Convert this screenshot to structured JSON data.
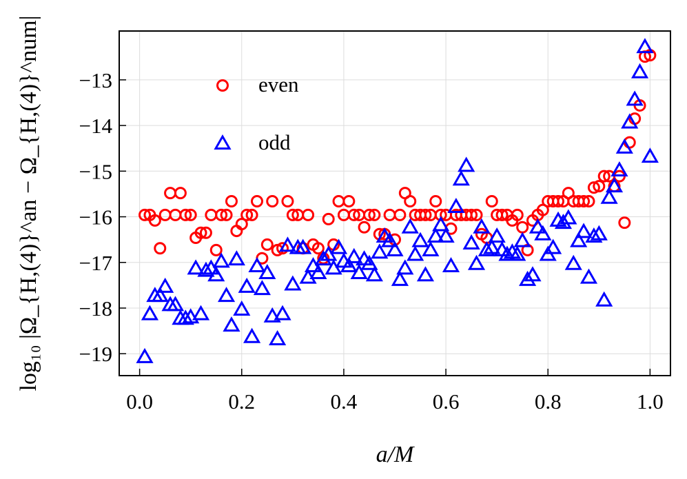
{
  "chart_data": {
    "type": "scatter",
    "xlabel": "a/M",
    "ylabel": "log₁₀ |Ω_{H,(4)}^an − Ω_{H,(4)}^num|",
    "x": [
      0.01,
      0.02,
      0.03,
      0.04,
      0.05,
      0.06,
      0.07,
      0.08,
      0.09,
      0.1,
      0.11,
      0.12,
      0.13,
      0.14,
      0.15,
      0.16,
      0.17,
      0.18,
      0.19,
      0.2,
      0.21,
      0.22,
      0.23,
      0.24,
      0.25,
      0.26,
      0.27,
      0.28,
      0.29,
      0.3,
      0.31,
      0.32,
      0.33,
      0.34,
      0.35,
      0.36,
      0.37,
      0.38,
      0.39,
      0.4,
      0.41,
      0.42,
      0.43,
      0.44,
      0.45,
      0.46,
      0.47,
      0.48,
      0.49,
      0.5,
      0.51,
      0.52,
      0.53,
      0.54,
      0.55,
      0.56,
      0.57,
      0.58,
      0.59,
      0.6,
      0.61,
      0.62,
      0.63,
      0.64,
      0.65,
      0.66,
      0.67,
      0.68,
      0.69,
      0.7,
      0.71,
      0.72,
      0.73,
      0.74,
      0.75,
      0.76,
      0.77,
      0.78,
      0.79,
      0.8,
      0.81,
      0.82,
      0.83,
      0.84,
      0.85,
      0.86,
      0.87,
      0.88,
      0.89,
      0.9,
      0.91,
      0.92,
      0.93,
      0.94,
      0.95,
      0.96,
      0.97,
      0.98,
      0.99,
      1.0
    ],
    "series": [
      {
        "name": "even",
        "color": "#ff0000",
        "marker": "circle",
        "values": [
          -15.96,
          -15.96,
          -16.08,
          -16.69,
          -15.96,
          -15.48,
          -15.96,
          -15.48,
          -15.96,
          -15.96,
          -16.46,
          -16.35,
          -16.35,
          -15.96,
          -16.73,
          -15.96,
          -15.96,
          -15.66,
          -16.31,
          -16.16,
          -15.96,
          -15.96,
          -15.66,
          -16.91,
          -16.61,
          -15.66,
          -16.73,
          -16.69,
          -15.66,
          -15.96,
          -15.96,
          -16.69,
          -15.96,
          -16.61,
          -16.69,
          -16.91,
          -16.05,
          -16.61,
          -15.66,
          -15.96,
          -15.66,
          -15.96,
          -15.96,
          -16.23,
          -15.96,
          -15.96,
          -16.38,
          -16.38,
          -15.96,
          -16.5,
          -15.96,
          -15.48,
          -15.66,
          -15.96,
          -15.96,
          -15.96,
          -15.96,
          -15.66,
          -15.96,
          -15.96,
          -16.26,
          -15.96,
          -15.96,
          -15.96,
          -15.96,
          -15.96,
          -16.38,
          -16.46,
          -15.66,
          -15.96,
          -15.96,
          -15.96,
          -16.08,
          -15.96,
          -16.23,
          -16.73,
          -16.08,
          -15.96,
          -15.85,
          -15.66,
          -15.66,
          -15.66,
          -15.66,
          -15.48,
          -15.66,
          -15.66,
          -15.66,
          -15.66,
          -15.36,
          -15.33,
          -15.11,
          -15.11,
          -15.33,
          -15.11,
          -16.13,
          -14.37,
          -13.85,
          -13.56,
          -12.49,
          -12.46
        ]
      },
      {
        "name": "odd",
        "color": "#0000ff",
        "marker": "triangle",
        "values": [
          -19.07,
          -18.13,
          -17.73,
          -17.73,
          -17.53,
          -17.93,
          -17.93,
          -18.23,
          -18.23,
          -18.2,
          -17.13,
          -18.13,
          -17.18,
          -17.13,
          -17.28,
          -16.98,
          -17.73,
          -18.38,
          -16.93,
          -18.03,
          -17.53,
          -18.63,
          -17.08,
          -17.58,
          -17.23,
          -18.18,
          -18.68,
          -18.13,
          -16.63,
          -17.48,
          -16.68,
          -16.68,
          -17.33,
          -17.08,
          -17.23,
          -16.93,
          -16.83,
          -17.13,
          -16.68,
          -16.98,
          -17.08,
          -16.88,
          -17.23,
          -16.93,
          -17.03,
          -17.28,
          -16.78,
          -16.43,
          -16.53,
          -16.73,
          -17.38,
          -17.13,
          -16.23,
          -16.83,
          -16.53,
          -17.28,
          -16.73,
          -16.43,
          -16.18,
          -16.43,
          -17.08,
          -15.78,
          -15.18,
          -14.88,
          -16.58,
          -17.03,
          -16.23,
          -16.73,
          -16.68,
          -16.43,
          -16.73,
          -16.83,
          -16.78,
          -16.83,
          -16.53,
          -17.38,
          -17.28,
          -16.23,
          -16.38,
          -16.83,
          -16.68,
          -16.08,
          -16.13,
          -16.03,
          -17.03,
          -16.53,
          -16.33,
          -17.33,
          -16.43,
          -16.38,
          -17.83,
          -15.58,
          -15.33,
          -14.98,
          -14.48,
          -13.93,
          -13.43,
          -12.83,
          -12.28,
          -14.68
        ]
      }
    ],
    "xlim": [
      -0.04,
      1.04
    ],
    "ylim": [
      -19.48,
      -11.93
    ],
    "xticks": [
      {
        "value": 0,
        "label": "0.0"
      },
      {
        "value": 0.2,
        "label": "0.2"
      },
      {
        "value": 0.4,
        "label": "0.4"
      },
      {
        "value": 0.6,
        "label": "0.6"
      },
      {
        "value": 0.8,
        "label": "0.8"
      },
      {
        "value": 1,
        "label": "1.0"
      }
    ],
    "yticks": [
      {
        "value": -19,
        "label": "−19"
      },
      {
        "value": -18,
        "label": "−18"
      },
      {
        "value": -17,
        "label": "−17"
      },
      {
        "value": -16,
        "label": "−16"
      },
      {
        "value": -15,
        "label": "−15"
      },
      {
        "value": -14,
        "label": "−14"
      },
      {
        "value": -13,
        "label": "−13"
      }
    ],
    "grid": true,
    "legend": "upper left"
  }
}
